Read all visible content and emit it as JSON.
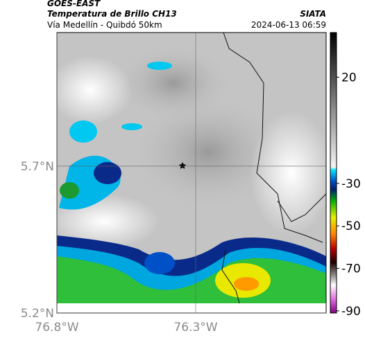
{
  "header": {
    "source": "GOES-EAST",
    "title": "Temperatura de Brillo CH13",
    "org": "SIATA",
    "subtitle": "Vía Medellín - Quibdó 50km",
    "datetime": "2024-06-13 06:59"
  },
  "map": {
    "xlim": [
      -76.8,
      -75.83
    ],
    "ylim": [
      5.2,
      6.155
    ],
    "xticks": [
      {
        "value": -76.8,
        "label": "76.8°W"
      },
      {
        "value": -76.3,
        "label": "76.3°W"
      }
    ],
    "yticks": [
      {
        "value": 5.2,
        "label": "5.2°N"
      },
      {
        "value": 5.7,
        "label": "5.7°N"
      }
    ]
  },
  "colorbar": {
    "lim": [
      -91,
      41
    ],
    "ticks": [
      20,
      -30,
      -50,
      -70,
      -90
    ]
  }
}
